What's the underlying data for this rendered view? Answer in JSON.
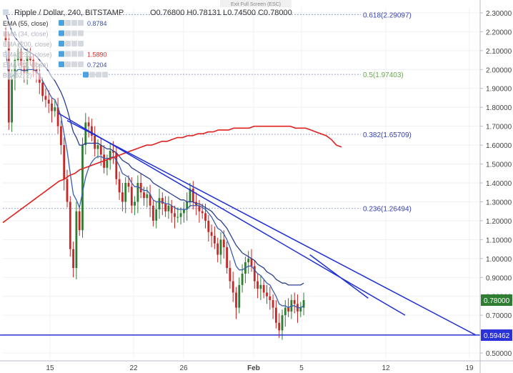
{
  "header": {
    "title": "Ripple / Dollar, 240, BITSTAMP",
    "ohlc": "O0.76800 H0.78131 L0.74500 C0.78000",
    "exit_fullscreen": "Exit Full Screen (ESC)"
  },
  "indicators": [
    {
      "label": "EMA (55, close)",
      "value": "0.8784",
      "value_color": "#3a4fa8"
    },
    {
      "label": "EMA (34, close)",
      "value": "",
      "value_color": "#3a4fa8"
    },
    {
      "label": "EMA (200, close)",
      "value": "",
      "value_color": "#d32f2f"
    },
    {
      "label": "EMA (233, close)",
      "value": "1.5890",
      "value_color": "#d32f2f"
    },
    {
      "label": "EMA (21, close)",
      "value": "0.7204",
      "value_color": "#3a4fa8"
    },
    {
      "label": "BB (52, 2)",
      "value": "",
      "value_color": "#3a4fa8"
    }
  ],
  "colors": {
    "up": "#2e7d32",
    "down": "#c62828",
    "ema_fast": "#3a5fb0",
    "ema_slow": "#2b3f8f",
    "ema_long": "#e0201f",
    "trend": "#1f2fd6",
    "support": "#2a32d8",
    "fib": "#7b86c0",
    "fib_mid": "#6aa84f",
    "price_tag": "#2e7d32"
  },
  "chart_data": {
    "type": "candlestick",
    "title": "Ripple / Dollar, 240, BITSTAMP",
    "x_ticks": [
      "15",
      "22",
      "26",
      "Feb",
      "5",
      "12",
      "19"
    ],
    "y_ticks": [
      "0.50000",
      "0.60000",
      "0.70000",
      "0.80000",
      "0.90000",
      "1.00000",
      "1.10000",
      "1.20000",
      "1.30000",
      "1.40000",
      "1.50000",
      "1.60000",
      "1.70000",
      "1.80000",
      "1.90000",
      "2.00000",
      "2.10000",
      "2.20000",
      "2.30000"
    ],
    "ylim": [
      0.47,
      2.33
    ],
    "price_tags": [
      {
        "label": "0.78000",
        "value": 0.78,
        "kind": "last"
      },
      {
        "label": "0.59462",
        "value": 0.59462,
        "kind": "support"
      }
    ],
    "fib_levels": [
      {
        "label": "0.618(2.29097)",
        "value": 2.29097
      },
      {
        "label": "0.5(1.97403)",
        "value": 1.97403
      },
      {
        "label": "0.382(1.65709)",
        "value": 1.65709
      },
      {
        "label": "0.236(1.26494)",
        "value": 1.26494
      }
    ],
    "support_level": 0.59462,
    "closes": [
      2.15,
      1.72,
      1.95,
      2.05,
      2.1,
      2.02,
      1.98,
      2.07,
      2.05,
      2.0,
      1.98,
      1.93,
      1.86,
      1.84,
      1.82,
      1.78,
      1.8,
      1.7,
      1.6,
      1.42,
      1.3,
      1.05,
      0.95,
      1.25,
      1.15,
      1.6,
      1.72,
      1.7,
      1.65,
      1.58,
      1.6,
      1.55,
      1.48,
      1.52,
      1.57,
      1.56,
      1.42,
      1.35,
      1.3,
      1.4,
      1.38,
      1.28,
      1.3,
      1.4,
      1.35,
      1.32,
      1.34,
      1.28,
      1.2,
      1.26,
      1.32,
      1.29,
      1.25,
      1.28,
      1.24,
      1.22,
      1.22,
      1.24,
      1.26,
      1.3,
      1.37,
      1.3,
      1.28,
      1.25,
      1.24,
      1.2,
      1.14,
      1.12,
      1.08,
      1.02,
      1.1,
      1.06,
      0.95,
      0.88,
      0.82,
      0.74,
      0.86,
      0.92,
      0.98,
      1.0,
      0.96,
      0.88,
      0.84,
      0.86,
      0.82,
      0.8,
      0.78,
      0.74,
      0.66,
      0.62,
      0.7,
      0.74,
      0.72,
      0.78,
      0.76,
      0.72,
      0.74,
      0.78
    ],
    "ema_fast_values": [
      2.1,
      1.96,
      1.96,
      1.98,
      2.0,
      2.0,
      1.99,
      2.0,
      2.0,
      2.0,
      1.99,
      1.97,
      1.94,
      1.91,
      1.88,
      1.85,
      1.84,
      1.8,
      1.75,
      1.66,
      1.57,
      1.45,
      1.34,
      1.31,
      1.27,
      1.35,
      1.43,
      1.48,
      1.51,
      1.53,
      1.54,
      1.54,
      1.53,
      1.53,
      1.53,
      1.54,
      1.52,
      1.49,
      1.45,
      1.44,
      1.43,
      1.4,
      1.38,
      1.38,
      1.37,
      1.36,
      1.36,
      1.34,
      1.31,
      1.3,
      1.3,
      1.3,
      1.29,
      1.29,
      1.28,
      1.27,
      1.26,
      1.26,
      1.26,
      1.26,
      1.28,
      1.28,
      1.28,
      1.28,
      1.27,
      1.26,
      1.24,
      1.22,
      1.19,
      1.16,
      1.15,
      1.13,
      1.1,
      1.06,
      1.01,
      0.96,
      0.94,
      0.94,
      0.95,
      0.96,
      0.96,
      0.94,
      0.92,
      0.91,
      0.89,
      0.87,
      0.86,
      0.83,
      0.8,
      0.76,
      0.75,
      0.75,
      0.74,
      0.75,
      0.75,
      0.74,
      0.74,
      0.75
    ],
    "ema_slow_values": [
      2.3,
      2.25,
      2.2,
      2.17,
      2.15,
      2.13,
      2.11,
      2.1,
      2.09,
      2.08,
      2.07,
      2.05,
      2.03,
      2.01,
      1.99,
      1.96,
      1.94,
      1.91,
      1.88,
      1.84,
      1.79,
      1.73,
      1.67,
      1.64,
      1.6,
      1.6,
      1.61,
      1.61,
      1.61,
      1.61,
      1.61,
      1.6,
      1.59,
      1.58,
      1.58,
      1.57,
      1.56,
      1.54,
      1.52,
      1.51,
      1.5,
      1.48,
      1.47,
      1.46,
      1.45,
      1.44,
      1.43,
      1.42,
      1.4,
      1.39,
      1.38,
      1.37,
      1.36,
      1.35,
      1.34,
      1.33,
      1.32,
      1.31,
      1.31,
      1.3,
      1.3,
      1.3,
      1.29,
      1.29,
      1.28,
      1.27,
      1.26,
      1.25,
      1.23,
      1.21,
      1.2,
      1.18,
      1.16,
      1.13,
      1.1,
      1.07,
      1.05,
      1.03,
      1.02,
      1.01,
      1.0,
      0.99,
      0.97,
      0.96,
      0.95,
      0.93,
      0.92,
      0.91,
      0.89,
      0.88,
      0.87,
      0.87,
      0.86,
      0.86,
      0.86,
      0.86,
      0.86,
      0.87
    ],
    "ema_long_values": [
      1.19,
      1.21,
      1.23,
      1.25,
      1.27,
      1.29,
      1.31,
      1.33,
      1.35,
      1.37,
      1.39,
      1.41,
      1.42,
      1.44,
      1.45,
      1.47,
      1.48,
      1.49,
      1.5,
      1.51,
      1.52,
      1.53,
      1.54,
      1.55,
      1.56,
      1.57,
      1.58,
      1.59,
      1.6,
      1.6,
      1.61,
      1.62,
      1.62,
      1.63,
      1.64,
      1.64,
      1.65,
      1.65,
      1.66,
      1.66,
      1.67,
      1.67,
      1.68,
      1.68,
      1.68,
      1.69,
      1.69,
      1.69,
      1.69,
      1.7,
      1.7,
      1.7,
      1.7,
      1.7,
      1.7,
      1.7,
      1.7,
      1.69,
      1.69,
      1.69,
      1.68,
      1.67,
      1.66,
      1.65,
      1.63,
      1.6,
      1.59
    ],
    "trendlines": [
      {
        "from": [
          17,
          1.77
        ],
        "to": [
          130,
          0.7
        ]
      },
      {
        "from": [
          99,
          1.02
        ],
        "to": [
          118,
          0.79
        ]
      },
      {
        "from": [
          -5,
          0.595
        ],
        "to": [
          160,
          0.595
        ]
      }
    ]
  }
}
